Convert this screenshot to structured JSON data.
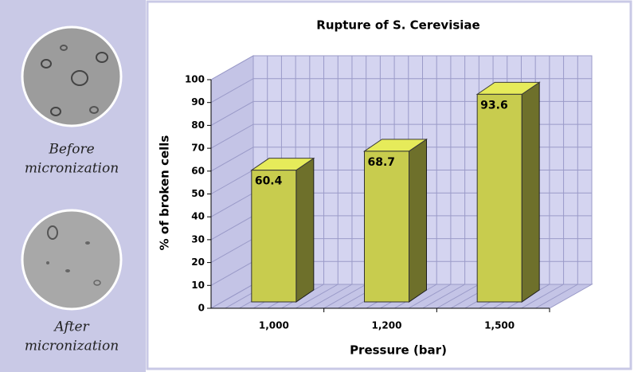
{
  "chart_data": {
    "type": "bar3d",
    "title": "Rupture of S. Cerevisiae",
    "x_label": "Pressure (bar)",
    "y_label": "% of broken cells",
    "categories": [
      "1,000",
      "1,200",
      "1,500"
    ],
    "values": [
      60.4,
      68.7,
      93.6
    ],
    "color": "#c8cc4e",
    "ylim": [
      0,
      100
    ],
    "yticks": [
      0,
      10,
      20,
      30,
      40,
      50,
      60,
      70,
      80,
      90,
      100
    ],
    "grid": true
  },
  "side_panel": {
    "captions": [
      [
        "Before",
        "micronization"
      ],
      [
        "After",
        "micronization"
      ]
    ]
  }
}
